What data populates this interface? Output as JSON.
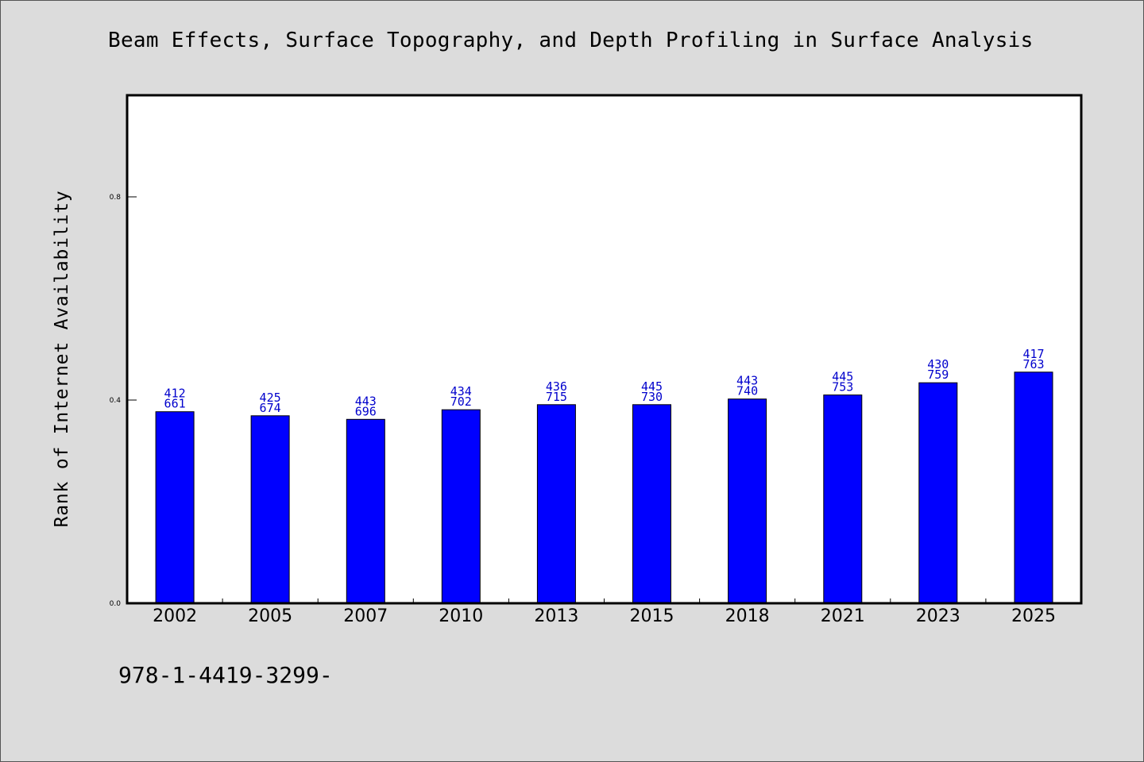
{
  "chart_data": {
    "type": "bar",
    "title": "Beam Effects, Surface Topography, and Depth Profiling in Surface Analysis",
    "xlabel": "",
    "ylabel": "Rank of Internet Availability",
    "categories": [
      "2002",
      "2005",
      "2007",
      "2010",
      "2013",
      "2015",
      "2018",
      "2021",
      "2023",
      "2025"
    ],
    "values": [
      0.377,
      0.369,
      0.362,
      0.381,
      0.391,
      0.391,
      0.402,
      0.41,
      0.434,
      0.455
    ],
    "label_top": [
      "412",
      "425",
      "443",
      "434",
      "436",
      "445",
      "443",
      "445",
      "430",
      "417"
    ],
    "label_bottom": [
      "661",
      "674",
      "696",
      "702",
      "715",
      "730",
      "740",
      "753",
      "759",
      "763"
    ],
    "y_ticks": [
      "0.0",
      "0.4",
      "0.8"
    ],
    "ylim": [
      0,
      1.0
    ],
    "grid": false,
    "bar_color": "#0000ff",
    "label_color": "#0000cc"
  },
  "footer": {
    "code": "978-1-4419-3299-"
  }
}
